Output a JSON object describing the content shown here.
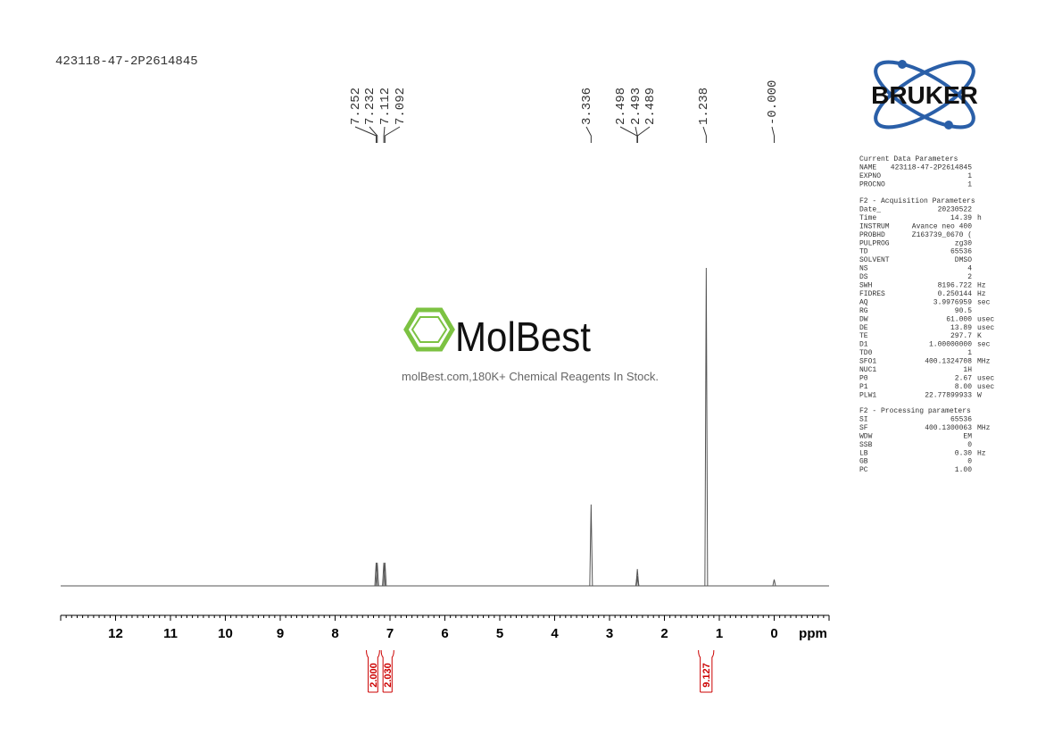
{
  "sample_id": "423118-47-2P2614845",
  "logo": "BRUKER",
  "watermark": {
    "brand": "MolBest",
    "tagline": "molBest.com,180K+ Chemical Reagents In Stock."
  },
  "chart_data": {
    "type": "spectrum",
    "x_label": "ppm",
    "xlim": [
      13,
      -1
    ],
    "ylim": [
      0,
      100
    ],
    "xticks": [
      12,
      11,
      10,
      9,
      8,
      7,
      6,
      5,
      4,
      3,
      2,
      1,
      0
    ],
    "color": "#555555",
    "peaks": {
      "x": [
        7.252,
        7.232,
        7.112,
        7.092,
        3.336,
        2.498,
        2.493,
        2.489,
        1.238,
        0
      ],
      "values": [
        7.3,
        7.3,
        7.3,
        7.3,
        25.6,
        3,
        5.3,
        3,
        100,
        2
      ],
      "x_labels": [
        "7.252",
        "7.232",
        "7.112",
        "7.092",
        "3.336",
        "2.498",
        "2.493",
        "2.489",
        "1.238",
        "-0.000"
      ]
    },
    "integrals": {
      "color": "#cc0000",
      "ranges": [
        [
          7.43,
          7.19
        ],
        [
          7.16,
          6.93
        ],
        [
          1.38,
          1.1
        ]
      ],
      "values": [
        2,
        2.03,
        9.127
      ],
      "value_labels": [
        "2.000",
        "2.030",
        "9.127"
      ]
    }
  },
  "parameters": [
    {
      "title": "Current Data Parameters",
      "rows": [
        [
          "NAME",
          "423118-47-2P2614845"
        ],
        [
          "EXPNO",
          "1"
        ],
        [
          "PROCNO",
          "1"
        ]
      ]
    },
    {
      "title": "F2 - Acquisition Parameters",
      "rows": [
        [
          "Date_",
          "20230522"
        ],
        [
          "Time",
          "14.39",
          "h"
        ],
        [
          "INSTRUM",
          "Avance neo 400"
        ],
        [
          "PROBHD",
          "Z163739_0670 ("
        ],
        [
          "PULPROG",
          "zg30"
        ],
        [
          "TD",
          "65536"
        ],
        [
          "SOLVENT",
          "DMSO"
        ],
        [
          "NS",
          "4"
        ],
        [
          "DS",
          "2"
        ],
        [
          "SWH",
          "8196.722",
          "Hz"
        ],
        [
          "FIDRES",
          "0.250144",
          "Hz"
        ],
        [
          "AQ",
          "3.9976959",
          "sec"
        ],
        [
          "RG",
          "90.5"
        ],
        [
          "DW",
          "61.000",
          "usec"
        ],
        [
          "DE",
          "13.89",
          "usec"
        ],
        [
          "TE",
          "297.7",
          "K"
        ],
        [
          "D1",
          "1.00000000",
          "sec"
        ],
        [
          "TD0",
          "1"
        ],
        [
          "SFO1",
          "400.1324708",
          "MHz"
        ],
        [
          "NUC1",
          "1H"
        ],
        [
          "P0",
          "2.67",
          "usec"
        ],
        [
          "P1",
          "8.00",
          "usec"
        ],
        [
          "PLW1",
          "22.77899933",
          "W"
        ]
      ]
    },
    {
      "title": "F2 - Processing parameters",
      "rows": [
        [
          "SI",
          "65536"
        ],
        [
          "SF",
          "400.1300063",
          "MHz"
        ],
        [
          "WDW",
          "EM"
        ],
        [
          "SSB",
          "0"
        ],
        [
          "LB",
          "0.30",
          "Hz"
        ],
        [
          "GB",
          "0"
        ],
        [
          "PC",
          "1.00"
        ]
      ]
    }
  ]
}
